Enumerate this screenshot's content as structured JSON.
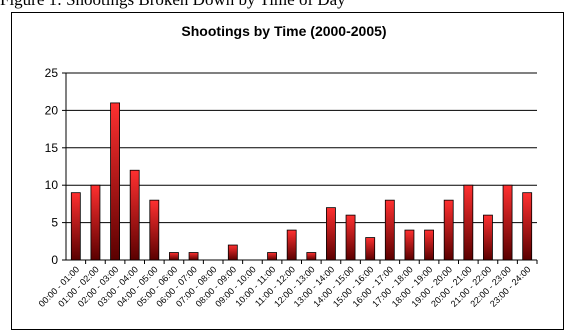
{
  "caption": "Figure 1: Shootings Broken Down by Time of Day",
  "chart_data": {
    "type": "bar",
    "title": "Shootings by Time (2000-2005)",
    "xlabel": "",
    "ylabel": "",
    "ylim": [
      0,
      25
    ],
    "yticks": [
      0,
      5,
      10,
      15,
      20,
      25
    ],
    "grid": true,
    "legend": "none",
    "categories": [
      "00:00 - 01:00",
      "01:00 - 02:00",
      "02:00 - 03:00",
      "03:00 - 04:00",
      "04:00 - 05:00",
      "05:00 - 06:00",
      "06:00 - 07:00",
      "07:00 - 08:00",
      "08:00 - 09:00",
      "09:00 - 10:00",
      "10:00 - 11:00",
      "11:00 - 12:00",
      "12:00 - 13:00",
      "13:00 - 14:00",
      "14:00 - 15:00",
      "15:00 - 16:00",
      "16:00 - 17:00",
      "17:00 - 18:00",
      "18:00 - 19:00",
      "19:00 - 20:00",
      "20:00 - 21:00",
      "21:00 - 22:00",
      "22:00 - 23:00",
      "23:00 - 24:00"
    ],
    "values": [
      9,
      10,
      21,
      12,
      8,
      1,
      1,
      0,
      2,
      0,
      1,
      4,
      1,
      7,
      6,
      3,
      8,
      4,
      4,
      8,
      10,
      6,
      10,
      9
    ],
    "bar_color_light": "#ff3030",
    "bar_color_dark": "#5a0000"
  }
}
